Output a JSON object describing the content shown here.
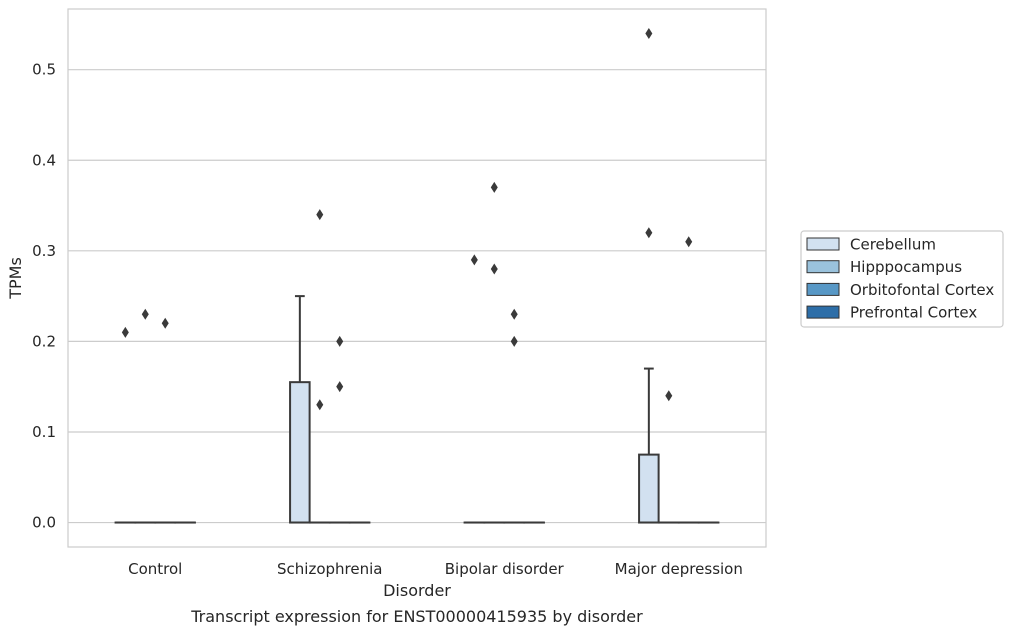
{
  "chart_data": {
    "type": "box",
    "title": "",
    "caption": "Transcript expression for ENST00000415935 by disorder",
    "xlabel": "Disorder",
    "ylabel": "TPMs",
    "ylim": [
      -0.027,
      0.567
    ],
    "yticks": [
      0.0,
      0.1,
      0.2,
      0.3,
      0.4,
      0.5
    ],
    "ytick_labels": [
      "0.0",
      "0.1",
      "0.2",
      "0.3",
      "0.4",
      "0.5"
    ],
    "grid": "horizontal",
    "legend_position": "right",
    "categories": [
      "Control",
      "Schizophrenia",
      "Bipolar disorder",
      "Major depression"
    ],
    "series": [
      {
        "name": "Cerebellum",
        "color": "#d2e1f0",
        "boxes": [
          {
            "q1": 0,
            "median": 0,
            "q3": 0,
            "whisker_low": 0,
            "whisker_high": 0,
            "outliers": [
              0.21
            ]
          },
          {
            "q1": 0,
            "median": 0,
            "q3": 0.155,
            "whisker_low": 0,
            "whisker_high": 0.25,
            "outliers": []
          },
          {
            "q1": 0,
            "median": 0,
            "q3": 0,
            "whisker_low": 0,
            "whisker_high": 0,
            "outliers": [
              0.29
            ]
          },
          {
            "q1": 0,
            "median": 0,
            "q3": 0.075,
            "whisker_low": 0,
            "whisker_high": 0.17,
            "outliers": [
              0.54,
              0.32
            ]
          }
        ]
      },
      {
        "name": "Hipppocampus",
        "color": "#9ac2dc",
        "boxes": [
          {
            "q1": 0,
            "median": 0,
            "q3": 0,
            "whisker_low": 0,
            "whisker_high": 0,
            "outliers": [
              0.23
            ]
          },
          {
            "q1": 0,
            "median": 0,
            "q3": 0,
            "whisker_low": 0,
            "whisker_high": 0,
            "outliers": [
              0.34,
              0.13
            ]
          },
          {
            "q1": 0,
            "median": 0,
            "q3": 0,
            "whisker_low": 0,
            "whisker_high": 0,
            "outliers": [
              0.37,
              0.28
            ]
          },
          {
            "q1": 0,
            "median": 0,
            "q3": 0,
            "whisker_low": 0,
            "whisker_high": 0,
            "outliers": [
              0.14
            ]
          }
        ]
      },
      {
        "name": "Orbitofontal Cortex",
        "color": "#5898c6",
        "boxes": [
          {
            "q1": 0,
            "median": 0,
            "q3": 0,
            "whisker_low": 0,
            "whisker_high": 0,
            "outliers": [
              0.22
            ]
          },
          {
            "q1": 0,
            "median": 0,
            "q3": 0,
            "whisker_low": 0,
            "whisker_high": 0,
            "outliers": [
              0.2,
              0.15
            ]
          },
          {
            "q1": 0,
            "median": 0,
            "q3": 0,
            "whisker_low": 0,
            "whisker_high": 0,
            "outliers": [
              0.23,
              0.2
            ]
          },
          {
            "q1": 0,
            "median": 0,
            "q3": 0,
            "whisker_low": 0,
            "whisker_high": 0,
            "outliers": [
              0.31
            ]
          }
        ]
      },
      {
        "name": "Prefrontal Cortex",
        "color": "#2d6ea8",
        "boxes": [
          {
            "q1": 0,
            "median": 0,
            "q3": 0,
            "whisker_low": 0,
            "whisker_high": 0,
            "outliers": []
          },
          {
            "q1": 0,
            "median": 0,
            "q3": 0,
            "whisker_low": 0,
            "whisker_high": 0,
            "outliers": []
          },
          {
            "q1": 0,
            "median": 0,
            "q3": 0,
            "whisker_low": 0,
            "whisker_high": 0,
            "outliers": []
          },
          {
            "q1": 0,
            "median": 0,
            "q3": 0,
            "whisker_low": 0,
            "whisker_high": 0,
            "outliers": []
          }
        ]
      }
    ]
  }
}
